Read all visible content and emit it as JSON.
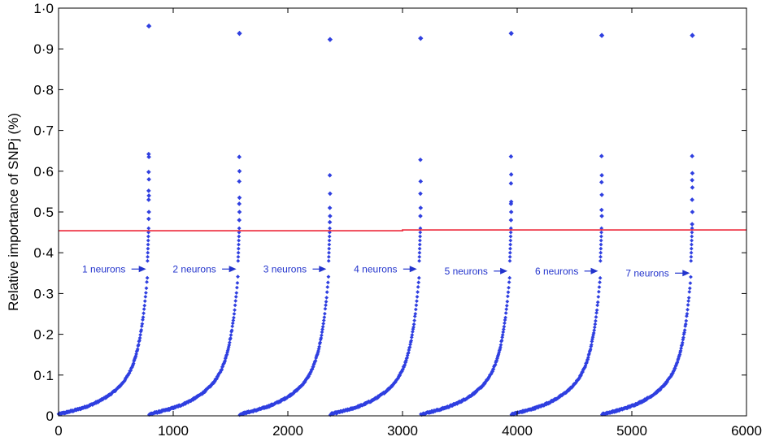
{
  "chart_data": {
    "type": "scatter",
    "title": "",
    "xlabel": "",
    "ylabel": "Relative importance of SNPj (%)",
    "xlim": [
      0,
      6000
    ],
    "ylim": [
      0,
      1.0
    ],
    "x_ticks": [
      0,
      1000,
      2000,
      3000,
      4000,
      5000,
      6000
    ],
    "x_tick_labels": [
      "0",
      "1000",
      "2000",
      "3000",
      "4000",
      "5000",
      "6000"
    ],
    "y_ticks": [
      0,
      0.1,
      0.2,
      0.3,
      0.4,
      0.5,
      0.6,
      0.7,
      0.8,
      0.9,
      1.0
    ],
    "y_tick_labels": [
      "0",
      "0·1",
      "0·2",
      "0·3",
      "0·4",
      "0·5",
      "0·6",
      "0·7",
      "0·8",
      "0·9",
      "1·0"
    ],
    "grid": false,
    "point_color": "#2f3fe0",
    "threshold_color": "#ee3344",
    "annotation_color": "#2233cc",
    "threshold": {
      "x": [
        0,
        3000,
        3000,
        6000
      ],
      "y": [
        0.454,
        0.454,
        0.456,
        0.456
      ]
    },
    "segment_points_per_segment": 790,
    "segments": [
      {
        "label": "1 neurons",
        "x_start": 0,
        "x_end": 790,
        "outliers": [
          0.642,
          0.635,
          0.598,
          0.58,
          0.552,
          0.54,
          0.53,
          0.5,
          0.483
        ],
        "top": 0.956,
        "arrow_to": [
          778,
          0.36
        ],
        "label_x": 395
      },
      {
        "label": "2 neurons",
        "x_start": 790,
        "x_end": 1580,
        "outliers": [
          0.635,
          0.6,
          0.575,
          0.535,
          0.52,
          0.5,
          0.48
        ],
        "top": 0.938,
        "arrow_to": [
          1565,
          0.36
        ],
        "label_x": 1185
      },
      {
        "label": "3 neurons",
        "x_start": 1580,
        "x_end": 2370,
        "outliers": [
          0.59,
          0.545,
          0.51,
          0.49,
          0.475
        ],
        "top": 0.923,
        "arrow_to": [
          2350,
          0.36
        ],
        "label_x": 1975
      },
      {
        "label": "4 neurons",
        "x_start": 2370,
        "x_end": 3160,
        "outliers": [
          0.628,
          0.575,
          0.545,
          0.51,
          0.49
        ],
        "top": 0.926,
        "arrow_to": [
          3140,
          0.36
        ],
        "label_x": 2765
      },
      {
        "label": "5 neurons",
        "x_start": 3160,
        "x_end": 3950,
        "outliers": [
          0.636,
          0.592,
          0.57,
          0.525,
          0.52,
          0.5,
          0.48
        ],
        "top": 0.938,
        "arrow_to": [
          3930,
          0.355
        ],
        "label_x": 3555
      },
      {
        "label": "6 neurons",
        "x_start": 3950,
        "x_end": 4740,
        "outliers": [
          0.637,
          0.59,
          0.573,
          0.542,
          0.505,
          0.49
        ],
        "top": 0.933,
        "arrow_to": [
          4720,
          0.355
        ],
        "label_x": 4345
      },
      {
        "label": "7 neurons",
        "x_start": 4740,
        "x_end": 5530,
        "outliers": [
          0.637,
          0.595,
          0.578,
          0.56,
          0.53,
          0.5,
          0.47
        ],
        "top": 0.933,
        "arrow_to": [
          5520,
          0.35
        ],
        "label_x": 5135
      }
    ]
  }
}
